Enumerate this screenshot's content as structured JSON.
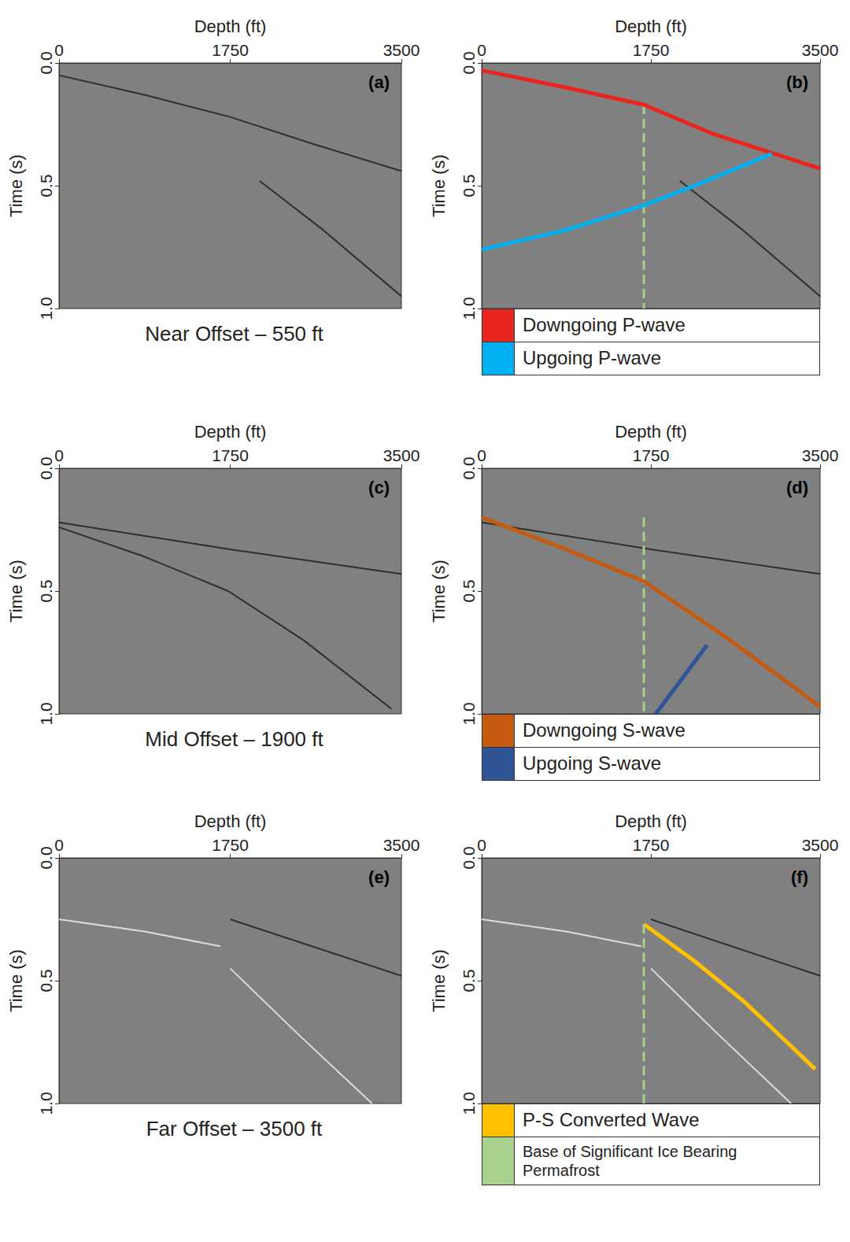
{
  "chart_data": [
    {
      "type": "line",
      "annotation": "(a)",
      "xlabel": "Depth (ft)",
      "ylabel": "Time (s)",
      "title": "Near Offset – 550 ft",
      "xlim": [
        0,
        3500
      ],
      "xticks": [
        0,
        1750,
        3500
      ],
      "ylim": [
        1,
        0
      ],
      "yticks": [
        {
          "value": 0,
          "label": "0.0"
        },
        {
          "value": 0.5,
          "label": "0.5"
        },
        {
          "value": 1,
          "label": "1.0"
        }
      ],
      "series": [
        {
          "color": "#1a1a1a",
          "x": [
            0,
            875,
            1750,
            2600,
            3500
          ],
          "values": [
            0.05,
            0.13,
            0.22,
            0.33,
            0.44
          ]
        },
        {
          "color": "#1a1a1a",
          "x": [
            2050,
            2700,
            3500
          ],
          "values": [
            0.48,
            0.68,
            0.95
          ]
        }
      ]
    },
    {
      "type": "line",
      "annotation": "(b)",
      "xlabel": "Depth (ft)",
      "ylabel": "Time (s)",
      "legend": "bottom",
      "xlim": [
        0,
        3500
      ],
      "xticks": [
        0,
        1750,
        3500
      ],
      "ylim": [
        1,
        0
      ],
      "yticks": [
        {
          "value": 0,
          "label": "0.0"
        },
        {
          "value": 0.5,
          "label": "0.5"
        },
        {
          "value": 1,
          "label": "1.0"
        }
      ],
      "series": [
        {
          "color": "#1a1a1a",
          "x": [
            2050,
            2700,
            3500
          ],
          "values": [
            0.48,
            0.68,
            0.95
          ]
        },
        {
          "color": "#a9d18e",
          "line_style": "dashed",
          "x": [
            1677,
            1677
          ],
          "values": [
            0.17,
            1
          ]
        },
        {
          "name": "Downgoing P-wave",
          "color": "#e8251f",
          "x": [
            0,
            875,
            1677,
            2400,
            3500
          ],
          "values": [
            0.03,
            0.1,
            0.17,
            0.29,
            0.43
          ]
        },
        {
          "name": "Upgoing P-wave",
          "color": "#00b0f0",
          "x": [
            0,
            875,
            1677,
            2200,
            3000
          ],
          "values": [
            0.76,
            0.68,
            0.58,
            0.5,
            0.37
          ]
        }
      ]
    },
    {
      "type": "line",
      "annotation": "(c)",
      "xlabel": "Depth (ft)",
      "ylabel": "Time (s)",
      "title": "Mid Offset – 1900 ft",
      "xlim": [
        0,
        3500
      ],
      "xticks": [
        0,
        1750,
        3500
      ],
      "ylim": [
        1,
        0
      ],
      "yticks": [
        {
          "value": 0,
          "label": "0.0"
        },
        {
          "value": 0.5,
          "label": "0.5"
        },
        {
          "value": 1,
          "label": "1.0"
        }
      ],
      "series": [
        {
          "color": "#1a1a1a",
          "x": [
            0,
            1750,
            3500
          ],
          "values": [
            0.22,
            0.33,
            0.43
          ]
        },
        {
          "color": "#1a1a1a",
          "x": [
            0,
            875,
            1730,
            2500,
            3400
          ],
          "values": [
            0.24,
            0.36,
            0.5,
            0.7,
            0.98
          ]
        }
      ]
    },
    {
      "type": "line",
      "annotation": "(d)",
      "xlabel": "Depth (ft)",
      "ylabel": "Time (s)",
      "legend": "bottom",
      "xlim": [
        0,
        3500
      ],
      "xticks": [
        0,
        1750,
        3500
      ],
      "ylim": [
        1,
        0
      ],
      "yticks": [
        {
          "value": 0,
          "label": "0.0"
        },
        {
          "value": 0.5,
          "label": "0.5"
        },
        {
          "value": 1,
          "label": "1.0"
        }
      ],
      "series": [
        {
          "color": "#1a1a1a",
          "x": [
            0,
            1750,
            3500
          ],
          "values": [
            0.22,
            0.33,
            0.43
          ]
        },
        {
          "color": "#a9d18e",
          "line_style": "dashed",
          "x": [
            1677,
            1677
          ],
          "values": [
            0.2,
            1
          ]
        },
        {
          "name": "Downgoing S-wave",
          "color": "#c55a11",
          "x": [
            0,
            875,
            1677,
            2500,
            3500
          ],
          "values": [
            0.2,
            0.33,
            0.46,
            0.68,
            0.97
          ]
        },
        {
          "name": "Upgoing S-wave",
          "color": "#2f5597",
          "x": [
            1800,
            2330
          ],
          "values": [
            1,
            0.72
          ]
        }
      ]
    },
    {
      "type": "line",
      "annotation": "(e)",
      "xlabel": "Depth (ft)",
      "ylabel": "Time (s)",
      "title": "Far Offset – 3500 ft",
      "xlim": [
        0,
        3500
      ],
      "xticks": [
        0,
        1750,
        3500
      ],
      "ylim": [
        1,
        0
      ],
      "yticks": [
        {
          "value": 0,
          "label": "0.0"
        },
        {
          "value": 0.5,
          "label": "0.5"
        },
        {
          "value": 1,
          "label": "1.0"
        }
      ],
      "series": [
        {
          "color": "#1a1a1a",
          "x": [
            1750,
            3500
          ],
          "values": [
            0.25,
            0.48
          ]
        },
        {
          "color": "#f2f2f2",
          "x": [
            0,
            875,
            1650,
            1700,
            1750,
            2450,
            3200
          ],
          "values": [
            0.25,
            0.3,
            0.36,
            null,
            0.45,
            0.72,
            1
          ]
        }
      ]
    },
    {
      "type": "line",
      "annotation": "(f)",
      "xlabel": "Depth (ft)",
      "ylabel": "Time (s)",
      "legend": "bottom",
      "xlim": [
        0,
        3500
      ],
      "xticks": [
        0,
        1750,
        3500
      ],
      "ylim": [
        1,
        0
      ],
      "yticks": [
        {
          "value": 0,
          "label": "0.0"
        },
        {
          "value": 0.5,
          "label": "0.5"
        },
        {
          "value": 1,
          "label": "1.0"
        }
      ],
      "series": [
        {
          "color": "#1a1a1a",
          "x": [
            1750,
            3500
          ],
          "values": [
            0.25,
            0.48
          ]
        },
        {
          "color": "#f2f2f2",
          "x": [
            0,
            875,
            1650,
            1700,
            1750,
            2450,
            3200
          ],
          "values": [
            0.25,
            0.3,
            0.36,
            null,
            0.45,
            0.72,
            1
          ]
        },
        {
          "name": "P-S Converted Wave",
          "color": "#ffc000",
          "x": [
            1677,
            2200,
            2700,
            3450
          ],
          "values": [
            0.27,
            0.42,
            0.58,
            0.86
          ]
        },
        {
          "name": "Base of Significant Ice Bearing Permafrost",
          "color": "#a9d18e",
          "line_style": "dashed",
          "x": [
            1677,
            1677
          ],
          "values": [
            0.27,
            1
          ]
        }
      ]
    }
  ]
}
